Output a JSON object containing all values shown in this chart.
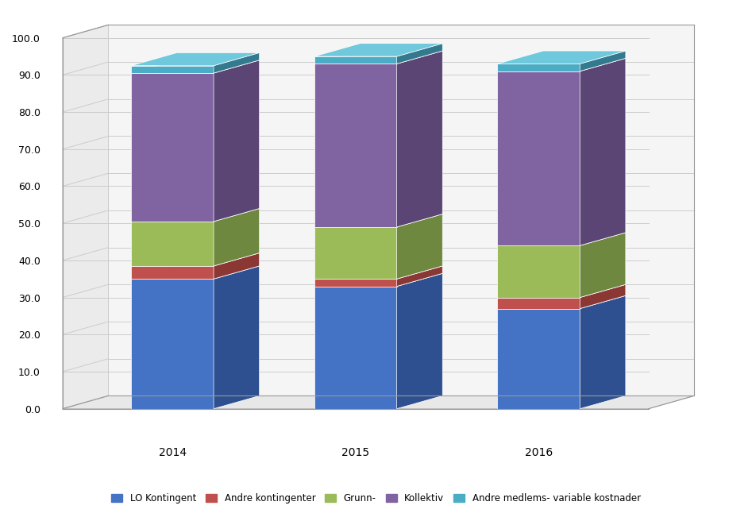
{
  "years": [
    "2014",
    "2015",
    "2016"
  ],
  "series": {
    "LO Kontingent": [
      35.0,
      33.0,
      27.0
    ],
    "Andre kontingenter": [
      3.5,
      2.0,
      3.0
    ],
    "Grunn-": [
      12.0,
      14.0,
      14.0
    ],
    "Kollektiv": [
      40.0,
      44.0,
      47.0
    ],
    "Andre medlems- variable kostnader": [
      2.0,
      2.0,
      2.0
    ]
  },
  "colors": {
    "LO Kontingent": "#4472C4",
    "Andre kontingenter": "#C0504D",
    "Grunn-": "#9BBB59",
    "Kollektiv": "#8064A2",
    "Andre medlems- variable kostnader": "#4BACC6"
  },
  "colors_dark": {
    "LO Kontingent": "#2E5090",
    "Andre kontingenter": "#8B3835",
    "Grunn-": "#6E8840",
    "Kollektiv": "#5A4575",
    "Andre medlems- variable kostnader": "#337A8E"
  },
  "colors_top": {
    "LO Kontingent": "#6A96D8",
    "Andre kontingenter": "#D07370",
    "Grunn-": "#B8D070",
    "Kollektiv": "#A08EC0",
    "Andre medlems- variable kostnader": "#70C8DC"
  },
  "ylim": [
    0,
    100
  ],
  "yticks": [
    0.0,
    10.0,
    20.0,
    30.0,
    40.0,
    50.0,
    60.0,
    70.0,
    80.0,
    90.0,
    100.0
  ],
  "background_color": "#FFFFFF",
  "legend_labels": [
    "LO Kontingent",
    "Andre kontingenter",
    "Grunn-",
    "Kollektiv",
    "Andre medlems- variable kostnader"
  ]
}
